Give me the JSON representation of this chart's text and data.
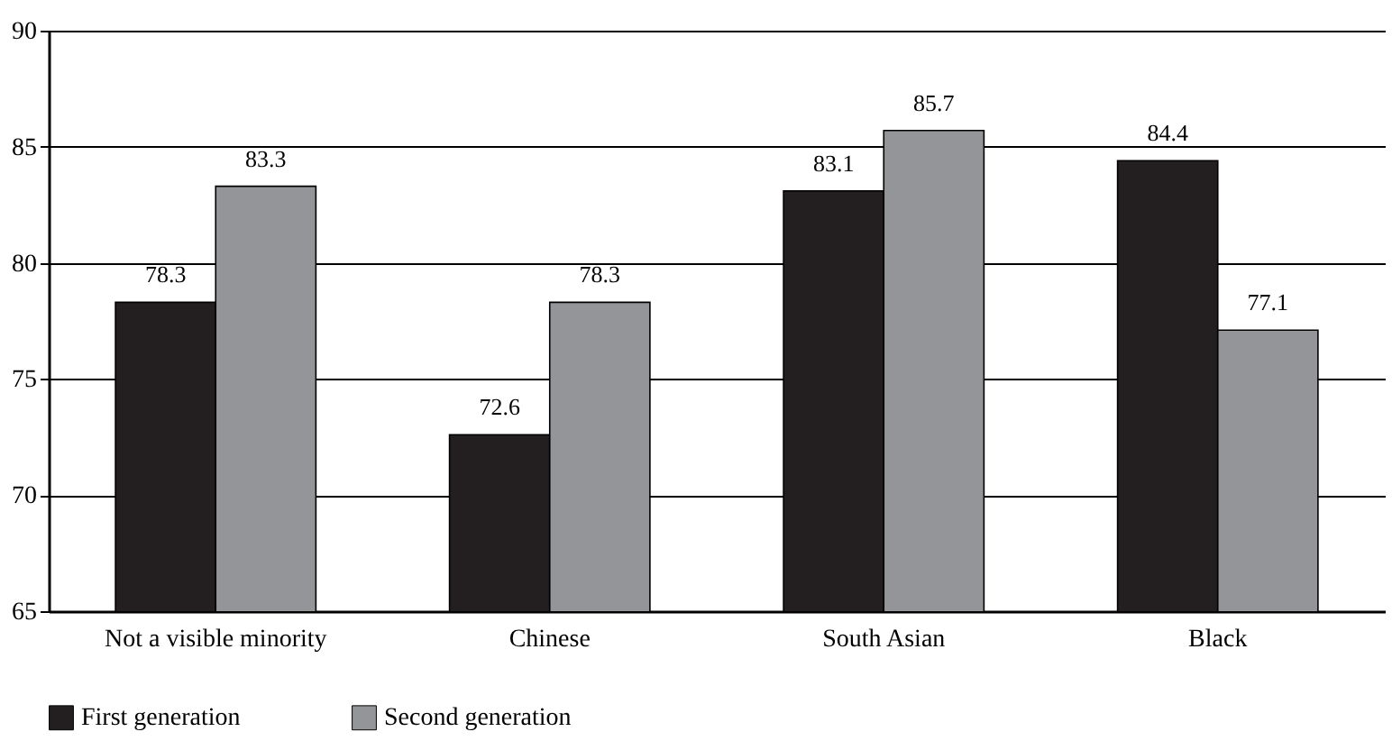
{
  "chart_data": {
    "type": "bar",
    "categories": [
      "Not a visible minority",
      "Chinese",
      "South Asian",
      "Black"
    ],
    "series": [
      {
        "name": "First generation",
        "color": "#231f20",
        "values": [
          78.3,
          72.6,
          83.1,
          84.4
        ]
      },
      {
        "name": "Second generation",
        "color": "#939598",
        "values": [
          83.3,
          78.3,
          85.7,
          77.1
        ]
      }
    ],
    "ylim": [
      65,
      90
    ],
    "yticks": [
      65,
      70,
      75,
      80,
      85,
      90
    ],
    "grid": "y",
    "legend": "bottom",
    "data_labels": true
  }
}
